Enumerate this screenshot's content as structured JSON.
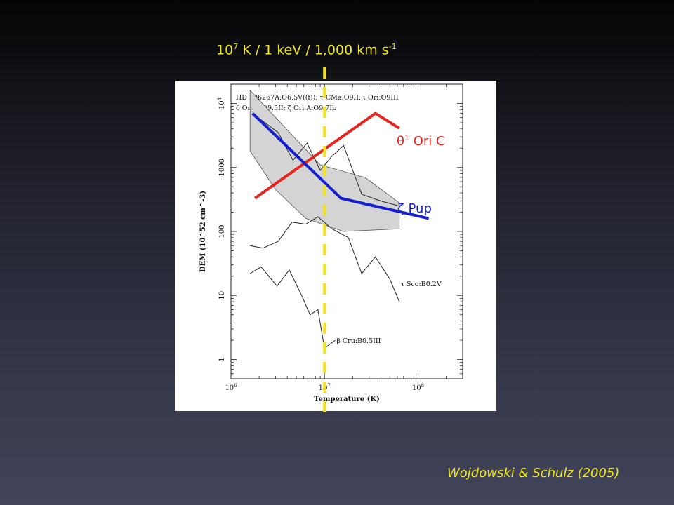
{
  "slide": {
    "top_label": {
      "prefix": "10",
      "exp1": "7",
      "middle": " K / 1 keV / 1,000 km s",
      "exp2": "-1"
    },
    "citation": "Wojdowski & Schulz (2005)",
    "colors": {
      "annotation_yellow": "#f2ea1e",
      "red_line": "#e8241f",
      "blue_line": "#1420d0",
      "dashed_line": "#f2e21e"
    }
  },
  "chart_data": {
    "type": "line",
    "xlabel": "Temperature (K)",
    "ylabel": "DEM (10^52 cm^-3)",
    "x_scale": "log",
    "y_scale": "log",
    "xlim": [
      1000000,
      300000000
    ],
    "ylim": [
      0.5,
      20000
    ],
    "x_ticks": [
      {
        "value": 1000000,
        "base": "10",
        "exp": "6"
      },
      {
        "value": 10000000,
        "base": "10",
        "exp": "7"
      },
      {
        "value": 100000000,
        "base": "10",
        "exp": "8"
      }
    ],
    "y_ticks": [
      {
        "value": 1,
        "label": "1"
      },
      {
        "value": 10,
        "label": "10"
      },
      {
        "value": 100,
        "label": "100"
      },
      {
        "value": 1000,
        "label": "1000"
      },
      {
        "value": 10000,
        "base": "10",
        "exp": "4"
      }
    ],
    "legend_text": {
      "line1": "HD 206267A:O6.5V((f)); τ CMa:O9II; ι Ori:O9III",
      "line2": "δ Ori A:O9.5II; ζ Ori A:O9.7Ib"
    },
    "gray_band": {
      "x": [
        1600000,
        1600000,
        3000000,
        6300000,
        16000000,
        63000000,
        63000000,
        27000000,
        9000000,
        1600000
      ],
      "y": [
        16000,
        1800,
        450,
        160,
        100,
        110,
        280,
        700,
        1100,
        16000
      ]
    },
    "series": [
      {
        "name": "θ1 Ori C",
        "name_base": "θ",
        "name_exp": "1",
        "name_rest": " Ori C",
        "style": "red",
        "x": [
          1800000,
          35000000,
          63000000
        ],
        "y": [
          330,
          7000,
          4100
        ]
      },
      {
        "name": "ζ Pup",
        "style": "blue",
        "x": [
          1700000,
          15000000,
          130000000
        ],
        "y": [
          7000,
          330,
          160
        ]
      },
      {
        "name": "τ Sco:B0.2V",
        "style": "thin",
        "x": [
          1600000,
          2200000,
          3200000,
          4500000,
          6300000,
          8500000,
          12000000,
          18000000,
          25000000,
          35000000,
          50000000,
          63000000
        ],
        "y": [
          60,
          55,
          70,
          140,
          130,
          170,
          110,
          80,
          22,
          40,
          18,
          8
        ]
      },
      {
        "name": "β Cru:B0.5III",
        "style": "thin",
        "x": [
          1600000,
          2100000,
          3100000,
          4200000,
          5700000,
          7000000,
          8500000,
          10000000,
          13000000
        ],
        "y": [
          22,
          28,
          14,
          25,
          10,
          5,
          6,
          1.5,
          2
        ]
      },
      {
        "name": "",
        "style": "thin",
        "x": [
          1700000,
          3200000,
          4600000,
          6500000,
          9000000,
          12000000,
          16000000,
          25000000,
          40000000,
          63000000
        ],
        "y": [
          7000,
          3500,
          1300,
          2400,
          900,
          1500,
          2200,
          380,
          300,
          250
        ]
      }
    ],
    "marker": {
      "x": 10000000
    }
  }
}
